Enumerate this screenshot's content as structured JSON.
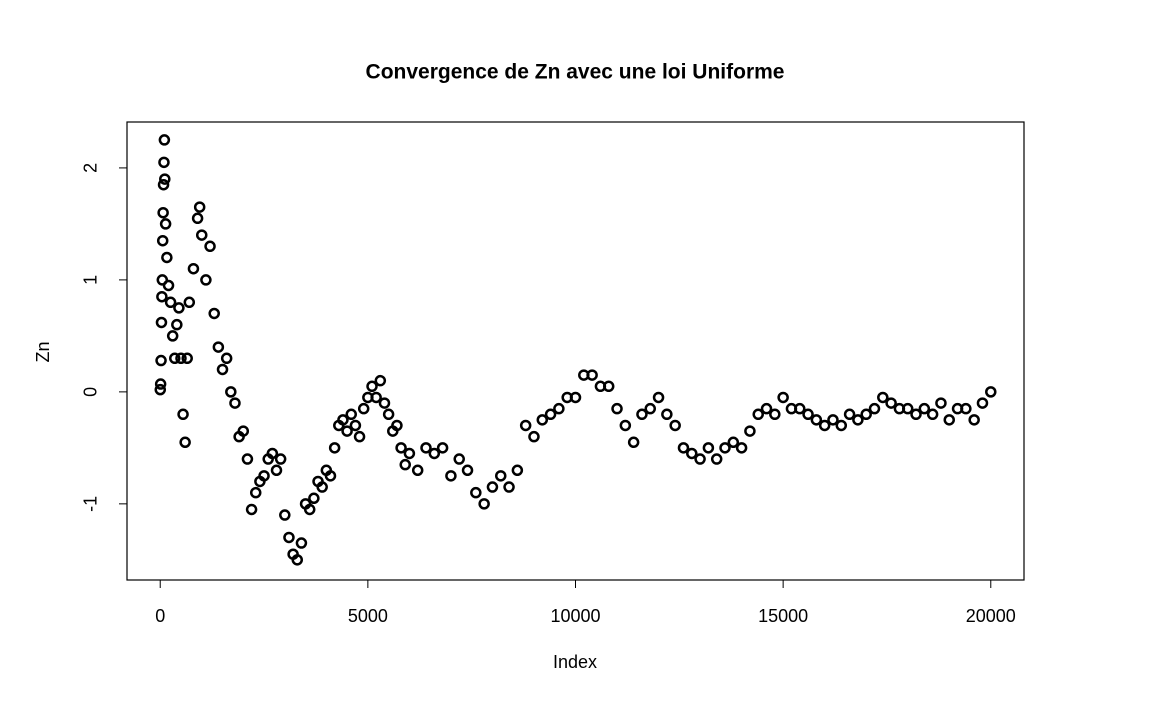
{
  "chart_data": {
    "type": "scatter",
    "title": "Convergence de Zn avec une loi Uniforme",
    "x_label": "Index",
    "y_label": "Zn",
    "color": "#000000",
    "x": [
      1,
      10,
      20,
      30,
      40,
      50,
      60,
      70,
      80,
      90,
      100,
      110,
      130,
      160,
      200,
      250,
      300,
      350,
      400,
      450,
      500,
      550,
      600,
      650,
      700,
      800,
      900,
      950,
      1000,
      1100,
      1200,
      1300,
      1400,
      1500,
      1600,
      1700,
      1800,
      1900,
      2000,
      2100,
      2200,
      2300,
      2400,
      2500,
      2600,
      2700,
      2800,
      2900,
      3000,
      3100,
      3200,
      3300,
      3400,
      3500,
      3600,
      3700,
      3800,
      3900,
      4000,
      4100,
      4200,
      4300,
      4400,
      4500,
      4600,
      4700,
      4800,
      4900,
      5000,
      5100,
      5200,
      5300,
      5400,
      5500,
      5600,
      5700,
      5800,
      5900,
      6000,
      6200,
      6400,
      6600,
      6800,
      7000,
      7200,
      7400,
      7600,
      7800,
      8000,
      8200,
      8400,
      8600,
      8800,
      9000,
      9200,
      9400,
      9600,
      9800,
      10000,
      10200,
      10400,
      10600,
      10800,
      11000,
      11200,
      11400,
      11600,
      11800,
      12000,
      12200,
      12400,
      12600,
      12800,
      13000,
      13200,
      13400,
      13600,
      13800,
      14000,
      14200,
      14400,
      14600,
      14800,
      15000,
      15200,
      15400,
      15600,
      15800,
      16000,
      16200,
      16400,
      16600,
      16800,
      17000,
      17200,
      17400,
      17600,
      17800,
      18000,
      18200,
      18400,
      18600,
      18800,
      19000,
      19200,
      19400,
      19600,
      19800,
      20000
    ],
    "values": [
      0.02,
      0.07,
      0.28,
      0.62,
      0.85,
      1.0,
      1.35,
      1.6,
      1.85,
      2.05,
      2.25,
      1.9,
      1.5,
      1.2,
      0.95,
      0.8,
      0.5,
      0.3,
      0.6,
      0.75,
      0.3,
      -0.2,
      -0.45,
      0.3,
      0.8,
      1.1,
      1.55,
      1.65,
      1.4,
      1.0,
      1.3,
      0.7,
      0.4,
      0.2,
      0.3,
      0.0,
      -0.1,
      -0.4,
      -0.35,
      -0.6,
      -1.05,
      -0.9,
      -0.8,
      -0.75,
      -0.6,
      -0.55,
      -0.7,
      -0.6,
      -1.1,
      -1.3,
      -1.45,
      -1.5,
      -1.35,
      -1.0,
      -1.05,
      -0.95,
      -0.8,
      -0.85,
      -0.7,
      -0.75,
      -0.5,
      -0.3,
      -0.25,
      -0.35,
      -0.2,
      -0.3,
      -0.4,
      -0.15,
      -0.05,
      0.05,
      -0.05,
      0.1,
      -0.1,
      -0.2,
      -0.35,
      -0.3,
      -0.5,
      -0.65,
      -0.55,
      -0.7,
      -0.5,
      -0.55,
      -0.5,
      -0.75,
      -0.6,
      -0.7,
      -0.9,
      -1.0,
      -0.85,
      -0.75,
      -0.85,
      -0.7,
      -0.3,
      -0.4,
      -0.25,
      -0.2,
      -0.15,
      -0.05,
      -0.05,
      0.15,
      0.15,
      0.05,
      0.05,
      -0.15,
      -0.3,
      -0.45,
      -0.2,
      -0.15,
      -0.05,
      -0.2,
      -0.3,
      -0.5,
      -0.55,
      -0.6,
      -0.5,
      -0.6,
      -0.5,
      -0.45,
      -0.5,
      -0.35,
      -0.2,
      -0.15,
      -0.2,
      -0.05,
      -0.15,
      -0.15,
      -0.2,
      -0.25,
      -0.3,
      -0.25,
      -0.3,
      -0.2,
      -0.25,
      -0.2,
      -0.15,
      -0.05,
      -0.1,
      -0.15,
      -0.15,
      -0.2,
      -0.15,
      -0.2,
      -0.1,
      -0.25,
      -0.15,
      -0.15,
      -0.25,
      -0.1,
      0.0
    ],
    "xlim": [
      -800,
      20800
    ],
    "ylim": [
      -1.68,
      2.41
    ],
    "xticks": [
      0,
      5000,
      10000,
      15000,
      20000
    ],
    "yticks": [
      -1,
      0,
      1,
      2
    ]
  }
}
